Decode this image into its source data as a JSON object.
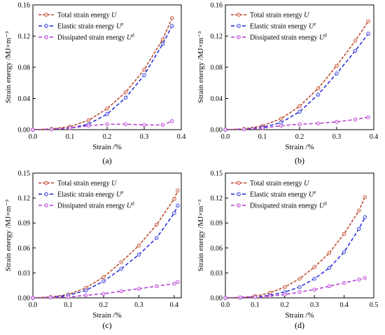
{
  "colors": {
    "total": "#b5432a",
    "elastic": "#1f25d9",
    "dissipated": "#b03ad0",
    "total_marker_fill": "#f7cfc4",
    "elastic_marker_fill": "#cfd3f7",
    "dissipated_marker_fill": "#efc8f5"
  },
  "chart_data": [
    {
      "type": "line",
      "panel_label": "(a)",
      "xlabel": "Strain /%",
      "ylabel": "Strain energy /MJ×m⁻³",
      "xlim": [
        0.0,
        0.4
      ],
      "ylim": [
        0.0,
        0.16
      ],
      "xticks": [
        0.0,
        0.1,
        0.2,
        0.3,
        0.4
      ],
      "xtick_labels": [
        "0.0",
        "0.1",
        "0.2",
        "0.3",
        "0.4"
      ],
      "yticks": [
        0.0,
        0.04,
        0.08,
        0.12,
        0.16
      ],
      "ytick_labels": [
        "0.00",
        "0.04",
        "0.08",
        "0.12",
        "0.16"
      ],
      "legend_position": "top-left",
      "legend": [
        {
          "label": "Total strain energy",
          "symbol": "U",
          "sup": ""
        },
        {
          "label": "Elastic strain energy",
          "symbol": "U",
          "sup": "e"
        },
        {
          "label": "Dissipated strain energy",
          "symbol": "U",
          "sup": "d"
        }
      ],
      "series": [
        {
          "key": "total",
          "x": [
            0.0,
            0.05,
            0.1,
            0.15,
            0.2,
            0.25,
            0.3,
            0.35,
            0.375
          ],
          "y": [
            0.0,
            0.001,
            0.004,
            0.012,
            0.027,
            0.048,
            0.077,
            0.116,
            0.143
          ]
        },
        {
          "key": "elastic",
          "x": [
            0.0,
            0.05,
            0.1,
            0.15,
            0.2,
            0.25,
            0.3,
            0.35,
            0.375
          ],
          "y": [
            0.0,
            0.0005,
            0.002,
            0.007,
            0.02,
            0.041,
            0.07,
            0.11,
            0.133
          ]
        },
        {
          "key": "dissipated",
          "x": [
            0.0,
            0.05,
            0.1,
            0.15,
            0.2,
            0.25,
            0.3,
            0.35,
            0.375
          ],
          "y": [
            0.0,
            0.0005,
            0.002,
            0.005,
            0.007,
            0.007,
            0.006,
            0.006,
            0.011
          ]
        }
      ]
    },
    {
      "type": "line",
      "panel_label": "(b)",
      "xlabel": "Strain /%",
      "ylabel": "Strain energy /MJ×m⁻³",
      "xlim": [
        0.0,
        0.4
      ],
      "ylim": [
        0.0,
        0.16
      ],
      "xticks": [
        0.0,
        0.1,
        0.2,
        0.3,
        0.4
      ],
      "xtick_labels": [
        "0.0",
        "0.1",
        "0.2",
        "0.3",
        "0.4"
      ],
      "yticks": [
        0.0,
        0.04,
        0.08,
        0.12,
        0.16
      ],
      "ytick_labels": [
        "0.00",
        "0.04",
        "0.08",
        "0.12",
        "0.16"
      ],
      "legend_position": "top-left",
      "legend": [
        {
          "label": "Total strain energy",
          "symbol": "U",
          "sup": ""
        },
        {
          "label": "Elastic strain energy",
          "symbol": "U",
          "sup": "e"
        },
        {
          "label": "Dissipated strain energy",
          "symbol": "U",
          "sup": "d"
        }
      ],
      "series": [
        {
          "key": "total",
          "x": [
            0.0,
            0.05,
            0.1,
            0.15,
            0.2,
            0.25,
            0.3,
            0.35,
            0.385
          ],
          "y": [
            0.0,
            0.001,
            0.005,
            0.014,
            0.03,
            0.053,
            0.082,
            0.114,
            0.139
          ]
        },
        {
          "key": "elastic",
          "x": [
            0.0,
            0.05,
            0.1,
            0.15,
            0.2,
            0.25,
            0.3,
            0.35,
            0.385
          ],
          "y": [
            0.0,
            0.0005,
            0.003,
            0.009,
            0.023,
            0.045,
            0.072,
            0.101,
            0.123
          ]
        },
        {
          "key": "dissipated",
          "x": [
            0.0,
            0.05,
            0.1,
            0.15,
            0.2,
            0.25,
            0.3,
            0.35,
            0.385
          ],
          "y": [
            0.0,
            0.0005,
            0.002,
            0.005,
            0.007,
            0.008,
            0.01,
            0.013,
            0.016
          ]
        }
      ]
    },
    {
      "type": "line",
      "panel_label": "(c)",
      "xlabel": "Strain /%",
      "ylabel": "Strain energy /MJ×m⁻³",
      "xlim": [
        0.0,
        0.42
      ],
      "ylim": [
        0.0,
        0.15
      ],
      "xticks": [
        0.0,
        0.1,
        0.2,
        0.3,
        0.4
      ],
      "xtick_labels": [
        "0.0",
        "0.1",
        "0.2",
        "0.3",
        "0.4"
      ],
      "yticks": [
        0.0,
        0.03,
        0.06,
        0.09,
        0.12,
        0.15
      ],
      "ytick_labels": [
        "0.00",
        "0.03",
        "0.06",
        "0.09",
        "0.12",
        "0.15"
      ],
      "legend_position": "top-left",
      "legend": [
        {
          "label": "Total strain energy",
          "symbol": "U",
          "sup": ""
        },
        {
          "label": "Elastic strain energy",
          "symbol": "U",
          "sup": "e"
        },
        {
          "label": "Dissipated strain energy",
          "symbol": "U",
          "sup": "d"
        }
      ],
      "series": [
        {
          "key": "total",
          "x": [
            0.0,
            0.05,
            0.1,
            0.15,
            0.2,
            0.25,
            0.3,
            0.35,
            0.4,
            0.41
          ],
          "y": [
            0.0,
            0.001,
            0.004,
            0.012,
            0.025,
            0.043,
            0.063,
            0.088,
            0.119,
            0.129
          ]
        },
        {
          "key": "elastic",
          "x": [
            0.0,
            0.05,
            0.1,
            0.15,
            0.2,
            0.25,
            0.3,
            0.35,
            0.4,
            0.41
          ],
          "y": [
            0.0,
            0.0005,
            0.003,
            0.009,
            0.02,
            0.035,
            0.052,
            0.072,
            0.102,
            0.111
          ]
        },
        {
          "key": "dissipated",
          "x": [
            0.0,
            0.05,
            0.1,
            0.15,
            0.2,
            0.25,
            0.3,
            0.35,
            0.4,
            0.41
          ],
          "y": [
            0.0,
            0.0005,
            0.001,
            0.003,
            0.005,
            0.008,
            0.011,
            0.014,
            0.017,
            0.019
          ]
        }
      ]
    },
    {
      "type": "line",
      "panel_label": "(d)",
      "xlabel": "Strain /%",
      "ylabel": "Strain energy /MJ×m⁻³",
      "xlim": [
        0.0,
        0.5
      ],
      "ylim": [
        0.0,
        0.15
      ],
      "xticks": [
        0.0,
        0.1,
        0.2,
        0.3,
        0.4,
        0.5
      ],
      "xtick_labels": [
        "0.0",
        "0.1",
        "0.2",
        "0.3",
        "0.4",
        "0.5"
      ],
      "yticks": [
        0.0,
        0.03,
        0.06,
        0.09,
        0.12,
        0.15
      ],
      "ytick_labels": [
        "0.00",
        "0.03",
        "0.06",
        "0.09",
        "0.12",
        "0.15"
      ],
      "legend_position": "top-left",
      "legend": [
        {
          "label": "Total strain energy",
          "symbol": "U",
          "sup": ""
        },
        {
          "label": "Elastic strain energy",
          "symbol": "U",
          "sup": "e"
        },
        {
          "label": "Dissipated strain energy",
          "symbol": "U",
          "sup": "d"
        }
      ],
      "series": [
        {
          "key": "total",
          "x": [
            0.0,
            0.05,
            0.1,
            0.15,
            0.2,
            0.25,
            0.3,
            0.35,
            0.4,
            0.45,
            0.47
          ],
          "y": [
            0.0,
            0.0005,
            0.002,
            0.006,
            0.013,
            0.023,
            0.037,
            0.054,
            0.077,
            0.105,
            0.121
          ]
        },
        {
          "key": "elastic",
          "x": [
            0.0,
            0.05,
            0.1,
            0.15,
            0.2,
            0.25,
            0.3,
            0.35,
            0.4,
            0.45,
            0.47
          ],
          "y": [
            0.0,
            0.0003,
            0.001,
            0.003,
            0.007,
            0.013,
            0.023,
            0.036,
            0.055,
            0.083,
            0.097
          ]
        },
        {
          "key": "dissipated",
          "x": [
            0.0,
            0.05,
            0.1,
            0.15,
            0.2,
            0.25,
            0.3,
            0.35,
            0.4,
            0.45,
            0.47
          ],
          "y": [
            0.0,
            0.0005,
            0.001,
            0.002,
            0.004,
            0.007,
            0.01,
            0.014,
            0.018,
            0.022,
            0.024
          ]
        }
      ]
    }
  ]
}
